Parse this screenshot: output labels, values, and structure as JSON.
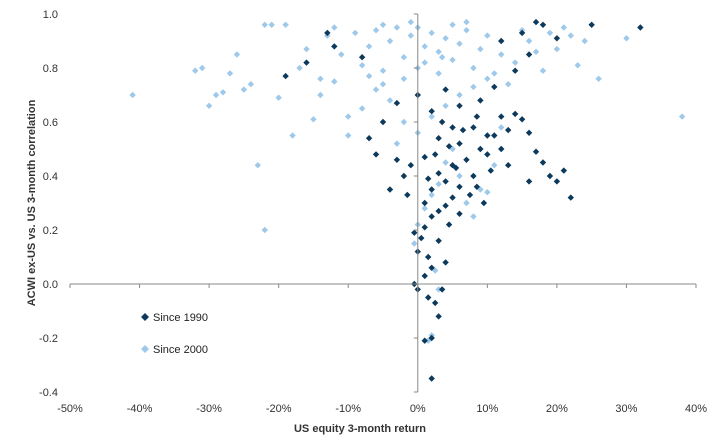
{
  "chart_data": {
    "type": "scatter",
    "title": "",
    "xlabel": "US equity 3-month return",
    "ylabel": "ACWI ex-US vs. US 3-month correlation",
    "xlim": [
      -0.5,
      0.4
    ],
    "ylim": [
      -0.4,
      1.0
    ],
    "x_ticks": [
      -0.5,
      -0.4,
      -0.3,
      -0.2,
      -0.1,
      0.0,
      0.1,
      0.2,
      0.3,
      0.4
    ],
    "x_tick_labels": [
      "-50%",
      "-40%",
      "-30%",
      "-20%",
      "-10%",
      "0%",
      "10%",
      "20%",
      "30%",
      "40%"
    ],
    "y_ticks": [
      -0.4,
      -0.2,
      0.0,
      0.2,
      0.4,
      0.6,
      0.8,
      1.0
    ],
    "y_tick_labels": [
      "-0.4",
      "-0.2",
      "0.0",
      "0.2",
      "0.4",
      "0.6",
      "0.8",
      "1.0"
    ],
    "grid": false,
    "legend_position": "bottom-left",
    "series": [
      {
        "name": "Since 1990",
        "color": "#0d3a5c",
        "marker": "diamond",
        "points": [
          [
            0.02,
            -0.35
          ],
          [
            0.01,
            -0.21
          ],
          [
            0.02,
            -0.2
          ],
          [
            0.03,
            -0.12
          ],
          [
            0.025,
            -0.07
          ],
          [
            0.015,
            -0.05
          ],
          [
            0.0,
            -0.02
          ],
          [
            -0.005,
            0.0
          ],
          [
            0.01,
            0.03
          ],
          [
            0.02,
            0.06
          ],
          [
            0.015,
            0.1
          ],
          [
            0.0,
            0.12
          ],
          [
            0.005,
            0.17
          ],
          [
            0.01,
            0.21
          ],
          [
            -0.005,
            0.19
          ],
          [
            0.02,
            0.25
          ],
          [
            0.03,
            0.27
          ],
          [
            0.01,
            0.3
          ],
          [
            0.04,
            0.29
          ],
          [
            0.05,
            0.32
          ],
          [
            0.02,
            0.35
          ],
          [
            0.04,
            0.38
          ],
          [
            0.06,
            0.36
          ],
          [
            0.03,
            0.41
          ],
          [
            0.05,
            0.44
          ],
          [
            0.08,
            0.4
          ],
          [
            0.07,
            0.46
          ],
          [
            0.09,
            0.5
          ],
          [
            0.06,
            0.52
          ],
          [
            0.1,
            0.48
          ],
          [
            0.11,
            0.55
          ],
          [
            0.08,
            0.58
          ],
          [
            0.12,
            0.62
          ],
          [
            0.13,
            0.57
          ],
          [
            0.14,
            0.63
          ],
          [
            0.15,
            0.61
          ],
          [
            0.16,
            0.56
          ],
          [
            0.17,
            0.49
          ],
          [
            0.18,
            0.45
          ],
          [
            0.19,
            0.4
          ],
          [
            0.2,
            0.38
          ],
          [
            0.21,
            0.42
          ],
          [
            0.22,
            0.32
          ],
          [
            0.16,
            0.38
          ],
          [
            0.13,
            0.44
          ],
          [
            0.12,
            0.5
          ],
          [
            0.1,
            0.55
          ],
          [
            0.05,
            0.58
          ],
          [
            0.03,
            0.54
          ],
          [
            0.01,
            0.47
          ],
          [
            -0.01,
            0.44
          ],
          [
            -0.02,
            0.4
          ],
          [
            -0.03,
            0.46
          ],
          [
            -0.04,
            0.35
          ],
          [
            -0.06,
            0.48
          ],
          [
            -0.07,
            0.54
          ],
          [
            -0.05,
            0.6
          ],
          [
            0.02,
            0.64
          ],
          [
            0.06,
            0.66
          ],
          [
            0.09,
            0.68
          ],
          [
            0.04,
            0.72
          ],
          [
            0.0,
            0.7
          ],
          [
            -0.03,
            0.67
          ],
          [
            -0.08,
            0.84
          ],
          [
            -0.12,
            0.88
          ],
          [
            -0.16,
            0.82
          ],
          [
            -0.19,
            0.77
          ],
          [
            -0.13,
            0.93
          ],
          [
            0.12,
            0.9
          ],
          [
            0.15,
            0.93
          ],
          [
            0.17,
            0.97
          ],
          [
            0.18,
            0.96
          ],
          [
            0.2,
            0.91
          ],
          [
            0.25,
            0.96
          ],
          [
            0.32,
            0.95
          ],
          [
            0.16,
            0.85
          ],
          [
            0.14,
            0.79
          ],
          [
            0.11,
            0.73
          ],
          [
            0.03,
            0.16
          ],
          [
            0.04,
            0.08
          ],
          [
            0.035,
            -0.02
          ],
          [
            0.045,
            0.22
          ],
          [
            0.06,
            0.26
          ],
          [
            0.075,
            0.33
          ],
          [
            0.085,
            0.36
          ],
          [
            0.095,
            0.3
          ],
          [
            0.105,
            0.42
          ],
          [
            0.055,
            0.43
          ],
          [
            0.015,
            0.39
          ],
          [
            -0.015,
            0.33
          ],
          [
            0.025,
            0.48
          ],
          [
            0.045,
            0.51
          ],
          [
            0.065,
            0.57
          ],
          [
            0.085,
            0.62
          ],
          [
            0.035,
            0.6
          ]
        ]
      },
      {
        "name": "Since 2000",
        "color": "#9ec9ea",
        "marker": "diamond",
        "points": [
          [
            -0.41,
            0.7
          ],
          [
            -0.32,
            0.79
          ],
          [
            -0.31,
            0.8
          ],
          [
            -0.3,
            0.66
          ],
          [
            -0.29,
            0.7
          ],
          [
            -0.28,
            0.71
          ],
          [
            -0.27,
            0.78
          ],
          [
            -0.26,
            0.85
          ],
          [
            -0.25,
            0.72
          ],
          [
            -0.24,
            0.74
          ],
          [
            -0.23,
            0.44
          ],
          [
            -0.22,
            0.96
          ],
          [
            -0.22,
            0.2
          ],
          [
            -0.21,
            0.96
          ],
          [
            -0.2,
            0.69
          ],
          [
            -0.19,
            0.96
          ],
          [
            -0.18,
            0.55
          ],
          [
            -0.17,
            0.8
          ],
          [
            -0.16,
            0.87
          ],
          [
            -0.15,
            0.61
          ],
          [
            -0.14,
            0.76
          ],
          [
            -0.13,
            0.92
          ],
          [
            -0.12,
            0.95
          ],
          [
            -0.11,
            0.85
          ],
          [
            -0.1,
            0.55
          ],
          [
            -0.09,
            0.93
          ],
          [
            -0.08,
            0.81
          ],
          [
            -0.07,
            0.88
          ],
          [
            -0.06,
            0.94
          ],
          [
            -0.05,
            0.79
          ],
          [
            -0.04,
            0.9
          ],
          [
            -0.03,
            0.95
          ],
          [
            -0.02,
            0.84
          ],
          [
            -0.01,
            0.92
          ],
          [
            0.0,
            0.95
          ],
          [
            0.01,
            0.88
          ],
          [
            0.02,
            0.93
          ],
          [
            0.03,
            0.86
          ],
          [
            0.04,
            0.91
          ],
          [
            0.05,
            0.83
          ],
          [
            0.06,
            0.89
          ],
          [
            0.07,
            0.94
          ],
          [
            0.08,
            0.8
          ],
          [
            0.09,
            0.87
          ],
          [
            0.1,
            0.92
          ],
          [
            0.11,
            0.78
          ],
          [
            0.12,
            0.85
          ],
          [
            0.13,
            0.74
          ],
          [
            0.14,
            0.82
          ],
          [
            0.15,
            0.94
          ],
          [
            0.16,
            0.9
          ],
          [
            0.17,
            0.86
          ],
          [
            0.18,
            0.79
          ],
          [
            0.19,
            0.93
          ],
          [
            0.2,
            0.87
          ],
          [
            0.21,
            0.95
          ],
          [
            0.22,
            0.92
          ],
          [
            0.23,
            0.81
          ],
          [
            0.24,
            0.9
          ],
          [
            0.26,
            0.76
          ],
          [
            0.3,
            0.91
          ],
          [
            0.38,
            0.62
          ],
          [
            -0.005,
            0.15
          ],
          [
            0.0,
            0.22
          ],
          [
            0.01,
            0.28
          ],
          [
            0.02,
            0.33
          ],
          [
            0.03,
            0.37
          ],
          [
            0.04,
            0.45
          ],
          [
            0.05,
            0.5
          ],
          [
            0.06,
            0.4
          ],
          [
            0.07,
            0.3
          ],
          [
            0.08,
            0.25
          ],
          [
            0.09,
            0.35
          ],
          [
            0.1,
            0.34
          ],
          [
            0.11,
            0.44
          ],
          [
            0.12,
            0.58
          ],
          [
            0.015,
            -0.21
          ],
          [
            0.02,
            -0.19
          ],
          [
            0.03,
            -0.02
          ],
          [
            0.025,
            0.05
          ],
          [
            -0.02,
            0.6
          ],
          [
            -0.04,
            0.68
          ],
          [
            -0.06,
            0.72
          ],
          [
            -0.08,
            0.65
          ],
          [
            -0.1,
            0.62
          ],
          [
            -0.12,
            0.75
          ],
          [
            -0.14,
            0.7
          ],
          [
            -0.03,
            0.52
          ],
          [
            0.0,
            0.56
          ],
          [
            0.02,
            0.62
          ],
          [
            0.04,
            0.66
          ],
          [
            0.06,
            0.7
          ],
          [
            0.08,
            0.73
          ],
          [
            0.1,
            0.76
          ],
          [
            0.03,
            0.78
          ],
          [
            0.0,
            0.8
          ],
          [
            -0.02,
            0.76
          ],
          [
            -0.05,
            0.74
          ],
          [
            -0.07,
            0.77
          ],
          [
            0.05,
            0.96
          ],
          [
            -0.01,
            0.97
          ],
          [
            0.07,
            0.97
          ],
          [
            -0.05,
            0.96
          ],
          [
            0.01,
            0.82
          ],
          [
            0.035,
            0.84
          ]
        ]
      }
    ]
  }
}
